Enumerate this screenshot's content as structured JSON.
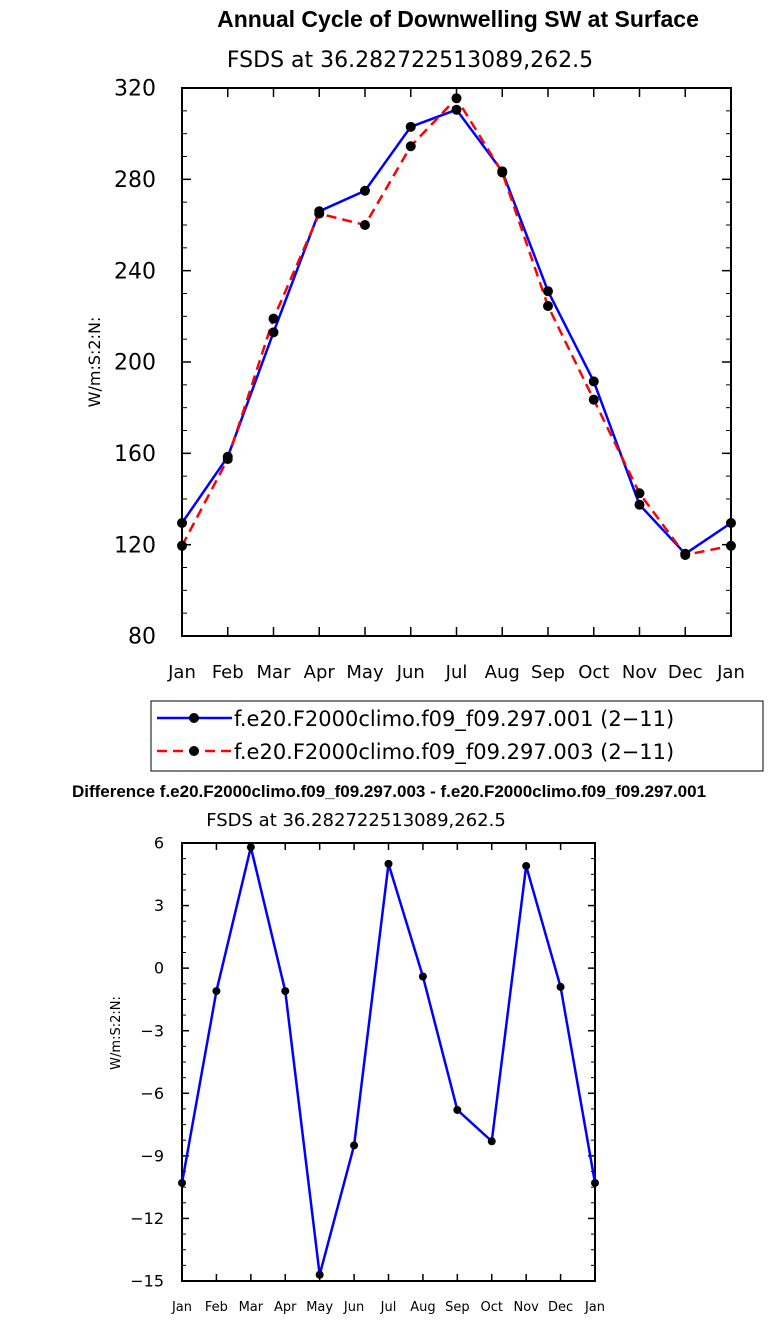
{
  "chart_data": [
    {
      "type": "line",
      "title": "Annual Cycle of Downwelling SW at Surface",
      "subtitle": "FSDS at 36.282722513089,262.5",
      "ylabel": "W/m:S:2:N:",
      "xlabel": "",
      "categories": [
        "Jan",
        "Feb",
        "Mar",
        "Apr",
        "May",
        "Jun",
        "Jul",
        "Aug",
        "Sep",
        "Oct",
        "Nov",
        "Dec",
        "Jan"
      ],
      "ylim": [
        80,
        320
      ],
      "yticks": [
        80,
        120,
        160,
        200,
        240,
        280,
        320
      ],
      "legend_position": "bottom",
      "series": [
        {
          "name": "f.e20.F2000climo.f09_f09.297.001 (2−11)",
          "color": "#0000ff",
          "dash": "solid",
          "values": [
            129.5,
            158.5,
            213,
            266,
            275,
            303,
            310.5,
            283.5,
            231,
            191.5,
            137.5,
            116,
            129.5
          ]
        },
        {
          "name": "f.e20.F2000climo.f09_f09.297.003 (2−11)",
          "color": "#ff0000",
          "dash": "dashed",
          "values": [
            119.5,
            157.5,
            219,
            265,
            260,
            294.5,
            315.5,
            283,
            224.5,
            183.5,
            142.5,
            115.5,
            119.5
          ]
        }
      ]
    },
    {
      "type": "line",
      "title": "Difference f.e20.F2000climo.f09_f09.297.003 - f.e20.F2000climo.f09_f09.297.001",
      "subtitle": "FSDS at 36.282722513089,262.5",
      "ylabel": "W/m:S:2:N:",
      "xlabel": "",
      "categories": [
        "Jan",
        "Feb",
        "Mar",
        "Apr",
        "May",
        "Jun",
        "Jul",
        "Aug",
        "Sep",
        "Oct",
        "Nov",
        "Dec",
        "Jan"
      ],
      "ylim": [
        -15,
        6
      ],
      "yticks": [
        -15,
        -12,
        -9,
        -6,
        -3,
        0,
        3,
        6
      ],
      "series": [
        {
          "name": "",
          "color": "#0000ff",
          "dash": "solid",
          "values": [
            -10.3,
            -1.1,
            5.8,
            -1.1,
            -14.7,
            -8.5,
            5.0,
            -0.4,
            -6.8,
            -8.3,
            4.9,
            -0.9,
            -10.3
          ]
        }
      ]
    }
  ]
}
